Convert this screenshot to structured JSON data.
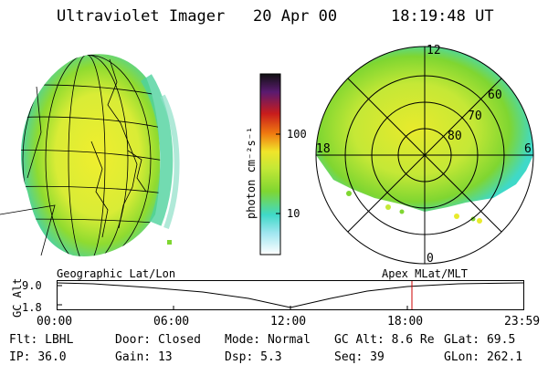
{
  "header": {
    "instrument": "Ultraviolet Imager",
    "date": "20 Apr 00",
    "time": "18:19:48 UT"
  },
  "colorbar": {
    "unit_label": "photon cm⁻²s⁻¹",
    "ticks": [
      "100",
      "10"
    ]
  },
  "polar_plot": {
    "mlt_labels": [
      "12",
      "18",
      "6",
      "0"
    ],
    "mlat_labels": [
      "60",
      "70",
      "80"
    ]
  },
  "map_labels": {
    "left": "Geographic Lat/Lon",
    "right": "Apex MLat/MLT"
  },
  "altitude_plot": {
    "axis_title": "GC Alt",
    "y_ticks": [
      "9.0",
      "1.8"
    ],
    "x_ticks": [
      "00:00",
      "06:00",
      "12:00",
      "18:00",
      "23:59"
    ],
    "marker_time": "18:19:48"
  },
  "info": {
    "row1": [
      {
        "label": "Flt:",
        "value": "LBHL"
      },
      {
        "label": "Door:",
        "value": "Closed"
      },
      {
        "label": "Mode:",
        "value": "Normal"
      },
      {
        "label": "GC Alt:",
        "value": "8.6 Re"
      },
      {
        "label": "GLat:",
        "value": "69.5"
      }
    ],
    "row2": [
      {
        "label": "IP:",
        "value": "36.0"
      },
      {
        "label": "Gain:",
        "value": "13"
      },
      {
        "label": "Dsp:",
        "value": "5.3"
      },
      {
        "label": "Seq:",
        "value": "39"
      },
      {
        "label": "GLon:",
        "value": "262.1"
      }
    ]
  },
  "colors": {
    "aurora_green": "#7fd631",
    "aurora_yellow": "#e8ea2c",
    "aurora_cyan": "#3fd9c8",
    "marker_red": "#cc0000"
  }
}
